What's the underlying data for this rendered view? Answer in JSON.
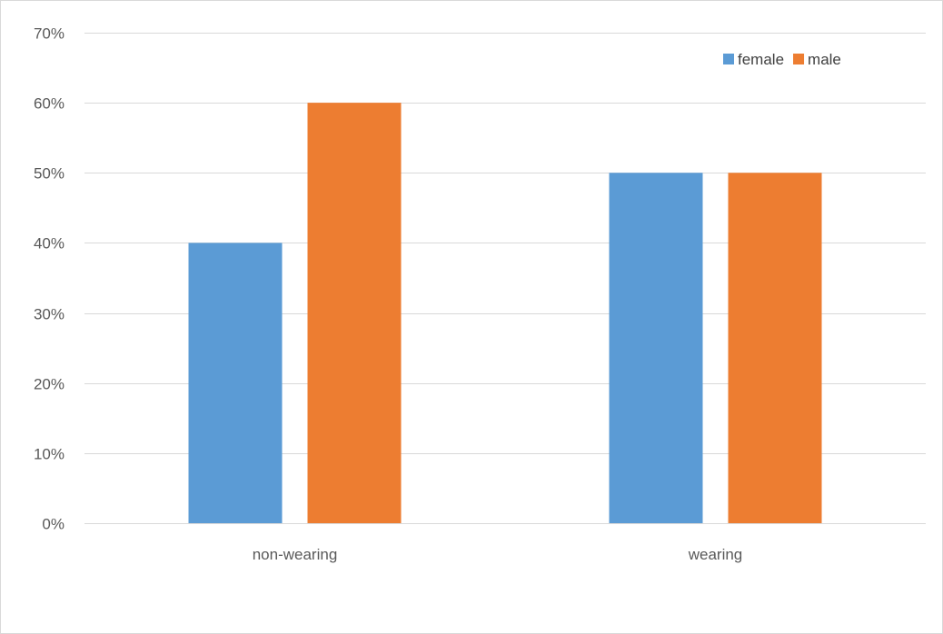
{
  "chart_data": {
    "type": "bar",
    "title": "",
    "xlabel": "",
    "ylabel": "",
    "categories": [
      "non-wearing",
      "wearing"
    ],
    "series": [
      {
        "name": "female",
        "color": "#5b9bd5",
        "values": [
          0.4,
          0.5
        ]
      },
      {
        "name": "male",
        "color": "#ed7d31",
        "values": [
          0.6,
          0.5
        ]
      }
    ],
    "ylim": [
      0,
      0.7
    ],
    "yticks": [
      0,
      0.1,
      0.2,
      0.3,
      0.4,
      0.5,
      0.6,
      0.7
    ],
    "ytick_labels": [
      "0%",
      "10%",
      "20%",
      "30%",
      "40%",
      "50%",
      "60%",
      "70%"
    ],
    "grid": true,
    "gridline_color": "#d9d9d9",
    "legend_position": "top-right"
  }
}
